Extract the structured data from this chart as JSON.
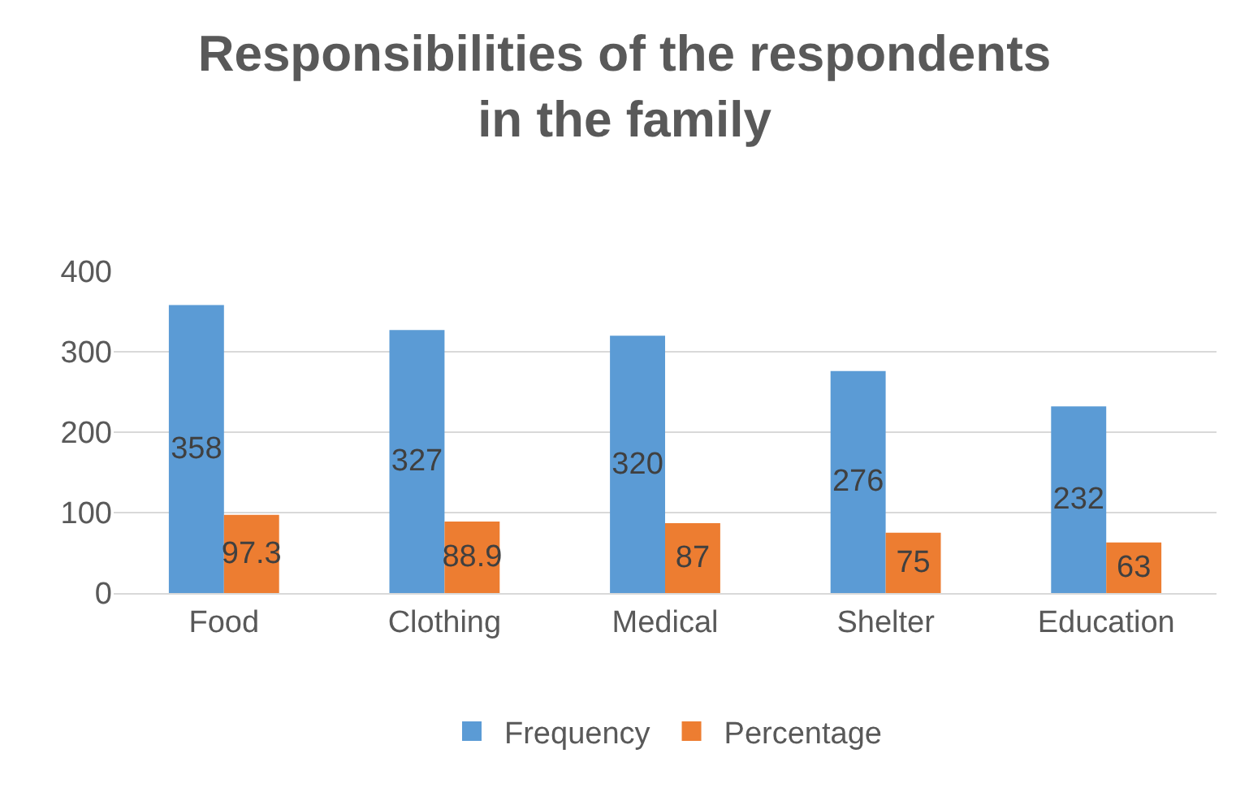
{
  "chart_data": {
    "type": "bar",
    "title": "Responsibilities of the respondents in the family",
    "categories": [
      "Food",
      "Clothing",
      "Medical",
      "Shelter",
      "Education"
    ],
    "series": [
      {
        "name": "Frequency",
        "color": "#5b9bd5",
        "values": [
          358,
          327,
          320,
          276,
          232
        ]
      },
      {
        "name": "Percentage",
        "color": "#ed7d31",
        "values": [
          97.3,
          88.9,
          87,
          75,
          63
        ]
      }
    ],
    "ylim": [
      0,
      400
    ],
    "yticks": [
      0,
      100,
      200,
      300,
      400
    ],
    "grid": "y",
    "legend": "bottom",
    "data_labels": true
  }
}
